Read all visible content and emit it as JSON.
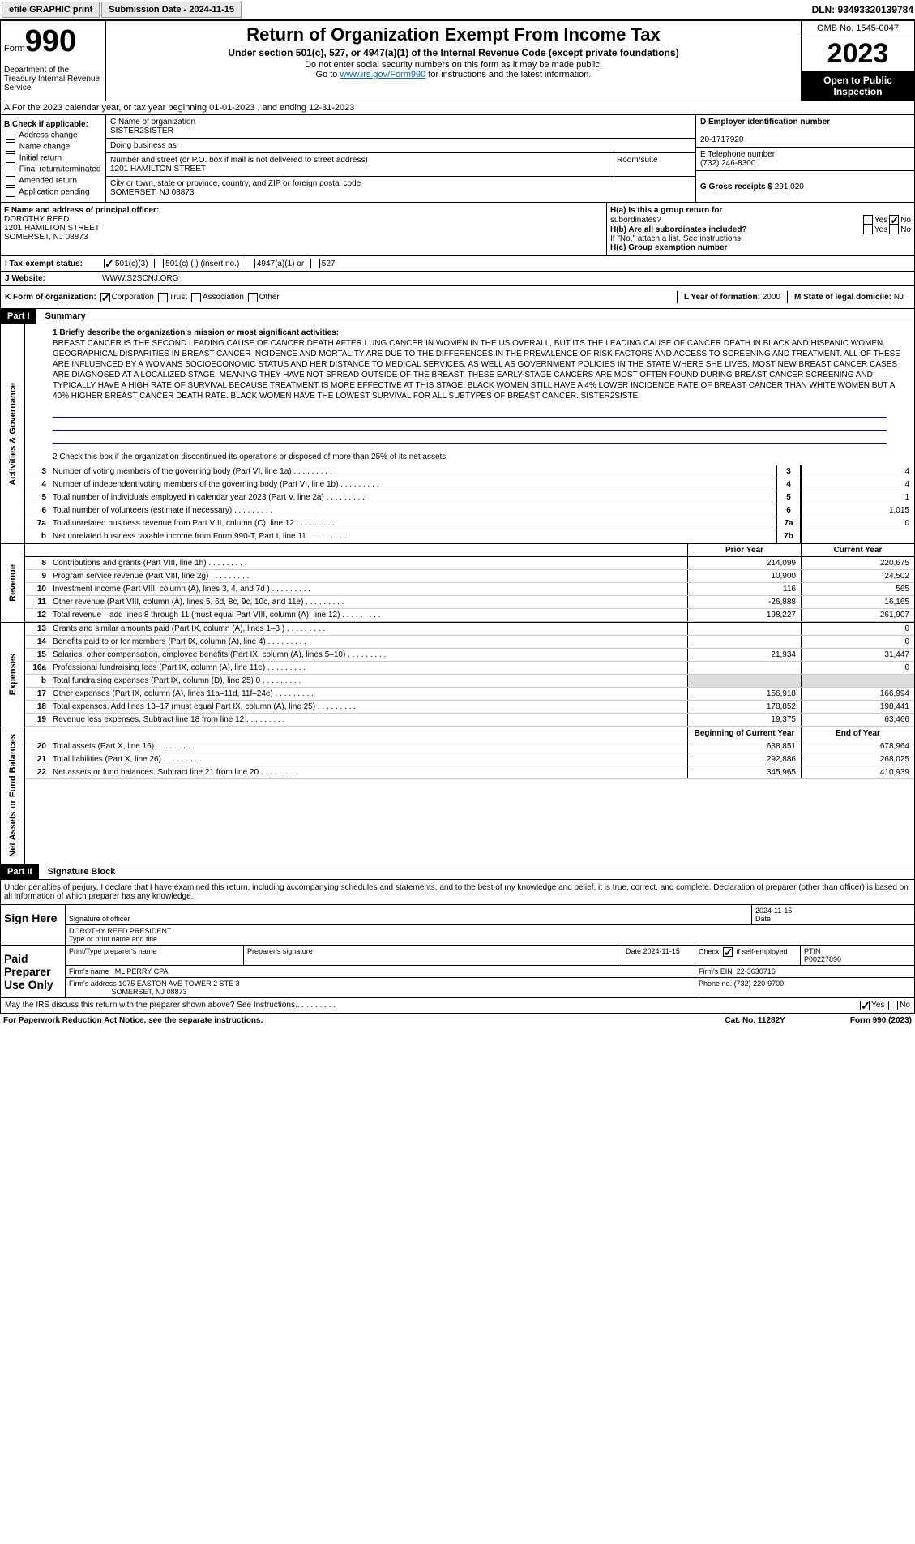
{
  "topbar": {
    "efile": "efile GRAPHIC print",
    "submission": "Submission Date - 2024-11-15",
    "dln": "DLN: 93493320139784"
  },
  "header": {
    "form": "Form",
    "num": "990",
    "title": "Return of Organization Exempt From Income Tax",
    "sub1": "Under section 501(c), 527, or 4947(a)(1) of the Internal Revenue Code (except private foundations)",
    "sub2": "Do not enter social security numbers on this form as it may be made public.",
    "sub3_pre": "Go to ",
    "sub3_link": "www.irs.gov/Form990",
    "sub3_post": " for instructions and the latest information.",
    "dept": "Department of the Treasury Internal Revenue Service",
    "omb": "OMB No. 1545-0047",
    "year": "2023",
    "inspection": "Open to Public Inspection"
  },
  "rowA": "A For the 2023 calendar year, or tax year beginning 01-01-2023   , and ending 12-31-2023",
  "colB": {
    "header": "B Check if applicable:",
    "items": [
      "Address change",
      "Name change",
      "Initial return",
      "Final return/terminated",
      "Amended return",
      "Application pending"
    ]
  },
  "colC": {
    "c_label": "C Name of organization",
    "org": "SISTER2SISTER",
    "dba": "Doing business as",
    "street_label": "Number and street (or P.O. box if mail is not delivered to street address)",
    "street": "1201 HAMILTON STREET",
    "room_label": "Room/suite",
    "city_label": "City or town, state or province, country, and ZIP or foreign postal code",
    "city": "SOMERSET, NJ  08873"
  },
  "colD": {
    "d_label": "D Employer identification number",
    "ein": "20-1717920",
    "e_label": "E Telephone number",
    "phone": "(732) 246-8300",
    "g_label": "G Gross receipts $",
    "gross": "291,020"
  },
  "officer": {
    "f_label": "F  Name and address of principal officer:",
    "name": "DOROTHY REED",
    "addr1": "1201 HAMILTON STREET",
    "addr2": "SOMERSET, NJ  08873",
    "ha": "H(a)  Is this a group return for",
    "ha2": "subordinates?",
    "hb": "H(b)  Are all subordinates included?",
    "hb2": "If \"No,\" attach a list. See instructions.",
    "hc": "H(c)  Group exemption number",
    "yes": "Yes",
    "no": "No"
  },
  "status": {
    "label": "I   Tax-exempt status:",
    "opt1": "501(c)(3)",
    "opt2": "501(c) (  ) (insert no.)",
    "opt3": "4947(a)(1) or",
    "opt4": "527"
  },
  "website": {
    "label": "J   Website:",
    "val": "WWW.S2SCNJ.ORG"
  },
  "korg": {
    "label": "K Form of organization:",
    "corp": "Corporation",
    "trust": "Trust",
    "assoc": "Association",
    "other": "Other",
    "l_label": "L Year of formation:",
    "l_val": "2000",
    "m_label": "M State of legal domicile:",
    "m_val": "NJ"
  },
  "part1": {
    "header": "Part I",
    "title": "Summary"
  },
  "sections": {
    "activities": "Activities & Governance",
    "revenue": "Revenue",
    "expenses": "Expenses",
    "netassets": "Net Assets or Fund Balances"
  },
  "mission_label": "1   Briefly describe the organization's mission or most significant activities:",
  "mission": "BREAST CANCER IS THE SECOND LEADING CAUSE OF CANCER DEATH AFTER LUNG CANCER IN WOMEN IN THE US OVERALL, BUT ITS THE LEADING CAUSE OF CANCER DEATH IN BLACK AND HISPANIC WOMEN. GEOGRAPHICAL DISPARITIES IN BREAST CANCER INCIDENCE AND MORTALITY ARE DUE TO THE DIFFERENCES IN THE PREVALENCE OF RISK FACTORS AND ACCESS TO SCREENING AND TREATMENT. ALL OF THESE ARE INFLUENCED BY A WOMANS SOCIOECONOMIC STATUS AND HER DISTANCE TO MEDICAL SERVICES, AS WELL AS GOVERNMENT POLICIES IN THE STATE WHERE SHE LIVES. MOST NEW BREAST CANCER CASES ARE DIAGNOSED AT A LOCALIZED STAGE, MEANING THEY HAVE NOT SPREAD OUTSIDE OF THE BREAST. THESE EARLY-STAGE CANCERS ARE MOST OFTEN FOUND DURING BREAST CANCER SCREENING AND TYPICALLY HAVE A HIGH RATE OF SURVIVAL BECAUSE TREATMENT IS MORE EFFECTIVE AT THIS STAGE. BLACK WOMEN STILL HAVE A 4% LOWER INCIDENCE RATE OF BREAST CANCER THAN WHITE WOMEN BUT A 40% HIGHER BREAST CANCER DEATH RATE. BLACK WOMEN HAVE THE LOWEST SURVIVAL FOR ALL SUBTYPES OF BREAST CANCER. SISTER2SISTE",
  "line2": "2   Check this box      if the organization discontinued its operations or disposed of more than 25% of its net assets.",
  "lines_ag": [
    {
      "n": "3",
      "t": "Number of voting members of the governing body (Part VI, line 1a)",
      "b": "3",
      "v": "4"
    },
    {
      "n": "4",
      "t": "Number of independent voting members of the governing body (Part VI, line 1b)",
      "b": "4",
      "v": "4"
    },
    {
      "n": "5",
      "t": "Total number of individuals employed in calendar year 2023 (Part V, line 2a)",
      "b": "5",
      "v": "1"
    },
    {
      "n": "6",
      "t": "Total number of volunteers (estimate if necessary)",
      "b": "6",
      "v": "1,015"
    },
    {
      "n": "7a",
      "t": "Total unrelated business revenue from Part VIII, column (C), line 12",
      "b": "7a",
      "v": "0"
    },
    {
      "n": "b",
      "t": "Net unrelated business taxable income from Form 990-T, Part I, line 11",
      "b": "7b",
      "v": ""
    }
  ],
  "col_headers": {
    "prior": "Prior Year",
    "current": "Current Year",
    "begin": "Beginning of Current Year",
    "end": "End of Year"
  },
  "lines_rev": [
    {
      "n": "8",
      "t": "Contributions and grants (Part VIII, line 1h)",
      "p": "214,099",
      "c": "220,675"
    },
    {
      "n": "9",
      "t": "Program service revenue (Part VIII, line 2g)",
      "p": "10,900",
      "c": "24,502"
    },
    {
      "n": "10",
      "t": "Investment income (Part VIII, column (A), lines 3, 4, and 7d )",
      "p": "116",
      "c": "565"
    },
    {
      "n": "11",
      "t": "Other revenue (Part VIII, column (A), lines 5, 6d, 8c, 9c, 10c, and 11e)",
      "p": "-26,888",
      "c": "16,165"
    },
    {
      "n": "12",
      "t": "Total revenue—add lines 8 through 11 (must equal Part VIII, column (A), line 12)",
      "p": "198,227",
      "c": "261,907"
    }
  ],
  "lines_exp": [
    {
      "n": "13",
      "t": "Grants and similar amounts paid (Part IX, column (A), lines 1–3 )",
      "p": "",
      "c": "0"
    },
    {
      "n": "14",
      "t": "Benefits paid to or for members (Part IX, column (A), line 4)",
      "p": "",
      "c": "0"
    },
    {
      "n": "15",
      "t": "Salaries, other compensation, employee benefits (Part IX, column (A), lines 5–10)",
      "p": "21,934",
      "c": "31,447"
    },
    {
      "n": "16a",
      "t": "Professional fundraising fees (Part IX, column (A), line 11e)",
      "p": "",
      "c": "0"
    },
    {
      "n": "b",
      "t": "Total fundraising expenses (Part IX, column (D), line 25) 0",
      "p": "shaded",
      "c": "shaded"
    },
    {
      "n": "17",
      "t": "Other expenses (Part IX, column (A), lines 11a–11d, 11f–24e)",
      "p": "156,918",
      "c": "166,994"
    },
    {
      "n": "18",
      "t": "Total expenses. Add lines 13–17 (must equal Part IX, column (A), line 25)",
      "p": "178,852",
      "c": "198,441"
    },
    {
      "n": "19",
      "t": "Revenue less expenses. Subtract line 18 from line 12",
      "p": "19,375",
      "c": "63,466"
    }
  ],
  "lines_net": [
    {
      "n": "20",
      "t": "Total assets (Part X, line 16)",
      "p": "638,851",
      "c": "678,964"
    },
    {
      "n": "21",
      "t": "Total liabilities (Part X, line 26)",
      "p": "292,886",
      "c": "268,025"
    },
    {
      "n": "22",
      "t": "Net assets or fund balances. Subtract line 21 from line 20",
      "p": "345,965",
      "c": "410,939"
    }
  ],
  "part2": {
    "header": "Part II",
    "title": "Signature Block"
  },
  "sig_intro": "Under penalties of perjury, I declare that I have examined this return, including accompanying schedules and statements, and to the best of my knowledge and belief, it is true, correct, and complete. Declaration of preparer (other than officer) is based on all information of which preparer has any knowledge.",
  "sign": {
    "here": "Sign Here",
    "sig_officer": "Signature of officer",
    "officer_name": "DOROTHY REED PRESIDENT",
    "type_name": "Type or print name and title",
    "date": "Date",
    "date_val": "2024-11-15",
    "paid": "Paid Preparer Use Only",
    "prep_name_label": "Print/Type preparer's name",
    "prep_sig": "Preparer's signature",
    "prep_date": "Date\n2024-11-15",
    "check_self": "Check        if self-employed",
    "ptin_label": "PTIN",
    "ptin": "P00227890",
    "firm_name_label": "Firm's name",
    "firm_name": "ML PERRY CPA",
    "firm_ein_label": "Firm's EIN",
    "firm_ein": "22-3630716",
    "firm_addr_label": "Firm's address",
    "firm_addr": "1075 EASTON AVE TOWER 2 STE 3",
    "firm_city": "SOMERSET, NJ  08873",
    "phone_label": "Phone no.",
    "phone": "(732) 220-9700",
    "discuss": "May the IRS discuss this return with the preparer shown above? See Instructions."
  },
  "footer": {
    "left": "For Paperwork Reduction Act Notice, see the separate instructions.",
    "mid": "Cat. No. 11282Y",
    "right": "Form 990 (2023)"
  }
}
